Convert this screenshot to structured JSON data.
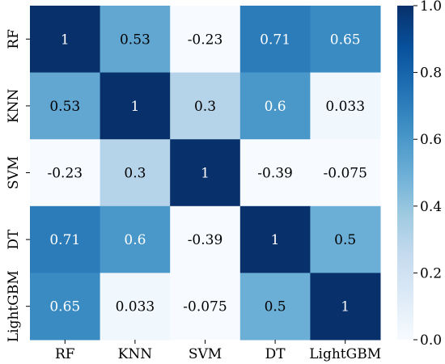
{
  "chart_data": {
    "type": "heatmap",
    "title": "",
    "xlabel": "",
    "ylabel": "",
    "x_categories": [
      "RF",
      "KNN",
      "SVM",
      "DT",
      "LightGBM"
    ],
    "y_categories": [
      "RF",
      "KNN",
      "SVM",
      "DT",
      "LightGBM"
    ],
    "values": [
      [
        1,
        0.53,
        -0.23,
        0.71,
        0.65
      ],
      [
        0.53,
        1,
        0.3,
        0.6,
        0.033
      ],
      [
        -0.23,
        0.3,
        1,
        -0.39,
        -0.075
      ],
      [
        0.71,
        0.6,
        -0.39,
        1,
        0.5
      ],
      [
        0.65,
        0.033,
        -0.075,
        0.5,
        1
      ]
    ],
    "value_labels": [
      [
        "1",
        "0.53",
        "-0.23",
        "0.71",
        "0.65"
      ],
      [
        "0.53",
        "1",
        "0.3",
        "0.6",
        "0.033"
      ],
      [
        "-0.23",
        "0.3",
        "1",
        "-0.39",
        "-0.075"
      ],
      [
        "0.71",
        "0.6",
        "-0.39",
        "1",
        "0.5"
      ],
      [
        "0.65",
        "0.033",
        "-0.075",
        "0.5",
        "1"
      ]
    ],
    "colormap": "Blues",
    "color_range": [
      0.0,
      1.0
    ],
    "colorbar": {
      "ticks": [
        0.0,
        0.2,
        0.4,
        0.6,
        0.8,
        1.0
      ],
      "tick_labels": [
        "0.0",
        "0.2",
        "0.4",
        "0.6",
        "0.8",
        "1.0"
      ],
      "placement": "right"
    },
    "grid": false
  }
}
